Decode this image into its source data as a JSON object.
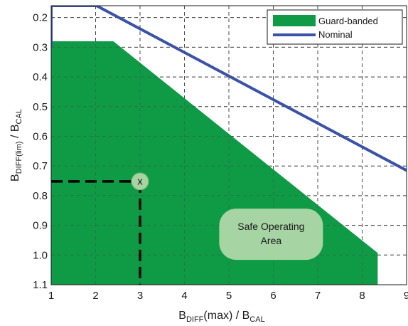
{
  "chart_data": {
    "type": "area",
    "xlabel": {
      "main": "B",
      "sub1": "DIFF",
      "mid": "(max) / B",
      "sub2": "CAL"
    },
    "ylabel": {
      "main": "B",
      "sub1": "DIFF(lim)",
      "mid": " / B",
      "sub2": "CAL"
    },
    "xlim": [
      1,
      9
    ],
    "ylim": [
      0.16,
      1.1
    ],
    "y_inverted": true,
    "grid": true,
    "legend_position": "top-right",
    "x_ticks": [
      "1",
      "2",
      "3",
      "4",
      "5",
      "6",
      "7",
      "8",
      "9"
    ],
    "x_tick_values": [
      1,
      2,
      3,
      4,
      5,
      6,
      7,
      8,
      9
    ],
    "y_ticks": [
      "0.2",
      "0.3",
      "0.4",
      "0.5",
      "0.6",
      "0.7",
      "0.8",
      "0.9",
      "1.0",
      "1.1"
    ],
    "y_tick_values": [
      0.2,
      0.3,
      0.4,
      0.5,
      0.6,
      0.7,
      0.8,
      0.9,
      1.0,
      1.1
    ],
    "series": [
      {
        "name": "Guard-banded",
        "type": "area",
        "color": "#0f9a46",
        "x": [
          1.0,
          2.4,
          8.35,
          8.35,
          1.0
        ],
        "y": [
          0.28,
          0.28,
          0.993,
          1.1,
          1.1
        ]
      },
      {
        "name": "Nominal",
        "type": "line",
        "color": "#3a52a8",
        "x": [
          1.0,
          1.0,
          2.02,
          9.0
        ],
        "y": [
          0.3,
          0.16,
          0.16,
          0.715
        ]
      }
    ],
    "operating_point": {
      "x": 3.0,
      "y": 0.752,
      "label": "x",
      "color": "#a6d4a3"
    },
    "annotation": {
      "line1": "Safe Operating",
      "line2": "Area",
      "x": 5.95,
      "y": 0.93,
      "color": "#a6d4a3"
    }
  }
}
